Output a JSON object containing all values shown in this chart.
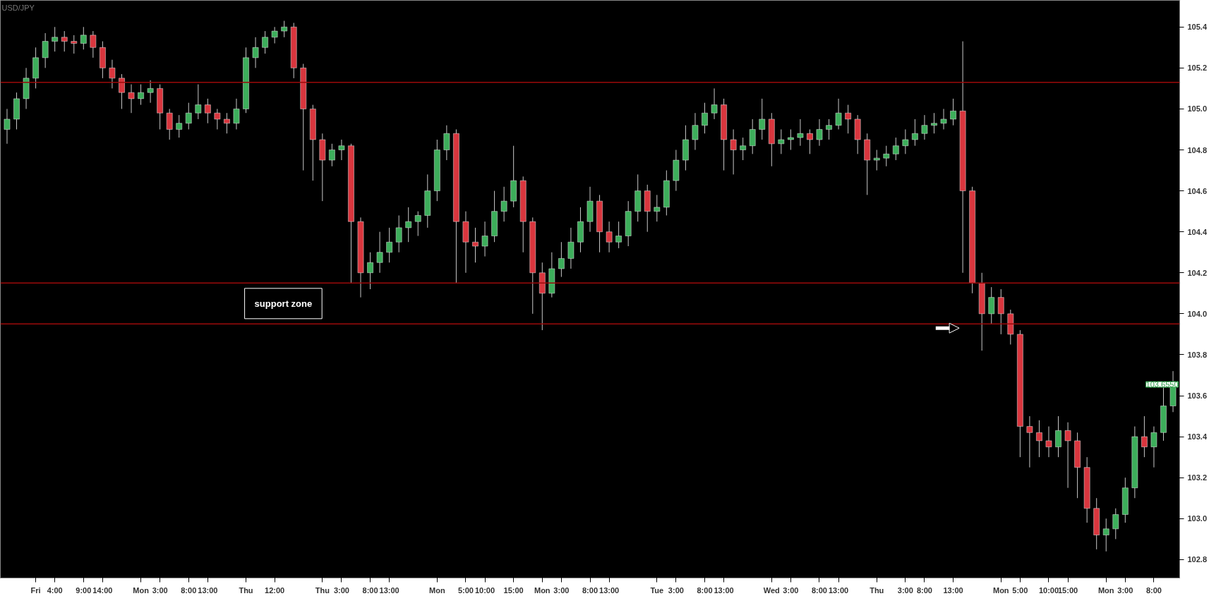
{
  "chart_data": {
    "type": "candlestick",
    "title": "USD/JPY",
    "categories": [
      null,
      null,
      null,
      "Fri",
      null,
      "4:00",
      null,
      null,
      "9:00",
      null,
      "14:00",
      null,
      null,
      null,
      "Mon",
      null,
      "3:00",
      null,
      null,
      "8:00",
      null,
      "13:00",
      null,
      null,
      null,
      "Thu",
      null,
      null,
      "12:00",
      null,
      null,
      null,
      null,
      "Thu",
      null,
      "3:00",
      null,
      null,
      "8:00",
      null,
      "13:00",
      null,
      null,
      null,
      null,
      "Mon",
      null,
      null,
      "5:00",
      null,
      "10:00",
      null,
      null,
      "15:00",
      null,
      null,
      "Mon",
      null,
      "3:00",
      null,
      null,
      "8:00",
      null,
      "13:00",
      null,
      null,
      null,
      null,
      "Tue",
      null,
      "3:00",
      null,
      null,
      "8:00",
      null,
      "13:00",
      null,
      null,
      null,
      null,
      "Wed",
      null,
      "3:00",
      null,
      null,
      "8:00",
      null,
      "13:00",
      null,
      null,
      null,
      "Thu",
      null,
      null,
      "3:00",
      null,
      "8:00",
      null,
      null,
      "13:00",
      null,
      null,
      null,
      null,
      "Mon",
      null,
      "5:00",
      null,
      null,
      "10:00",
      null,
      "15:00",
      null,
      null,
      null,
      "Mon",
      null,
      "3:00",
      null,
      null,
      "8:00",
      null,
      null
    ],
    "ohlc": [
      [
        104.9,
        105.0,
        104.83,
        104.95
      ],
      [
        104.95,
        105.08,
        104.9,
        105.05
      ],
      [
        105.05,
        105.2,
        105.0,
        105.15
      ],
      [
        105.15,
        105.3,
        105.1,
        105.25
      ],
      [
        105.25,
        105.37,
        105.2,
        105.33
      ],
      [
        105.33,
        105.4,
        105.28,
        105.35
      ],
      [
        105.35,
        105.38,
        105.28,
        105.33
      ],
      [
        105.33,
        105.36,
        105.27,
        105.32
      ],
      [
        105.32,
        105.4,
        105.29,
        105.36
      ],
      [
        105.36,
        105.38,
        105.25,
        105.3
      ],
      [
        105.3,
        105.33,
        105.15,
        105.2
      ],
      [
        105.2,
        105.24,
        105.1,
        105.15
      ],
      [
        105.15,
        105.17,
        105.0,
        105.08
      ],
      [
        105.08,
        105.12,
        104.98,
        105.05
      ],
      [
        105.05,
        105.12,
        105.02,
        105.08
      ],
      [
        105.08,
        105.14,
        105.03,
        105.1
      ],
      [
        105.1,
        105.12,
        104.9,
        104.98
      ],
      [
        104.98,
        105.0,
        104.85,
        104.9
      ],
      [
        104.9,
        104.97,
        104.86,
        104.93
      ],
      [
        104.93,
        105.03,
        104.9,
        104.98
      ],
      [
        104.98,
        105.12,
        104.95,
        105.02
      ],
      [
        105.02,
        105.05,
        104.93,
        104.98
      ],
      [
        104.98,
        105.0,
        104.9,
        104.95
      ],
      [
        104.95,
        104.98,
        104.88,
        104.93
      ],
      [
        104.93,
        105.05,
        104.9,
        105.0
      ],
      [
        105.0,
        105.3,
        104.98,
        105.25
      ],
      [
        105.25,
        105.35,
        105.2,
        105.3
      ],
      [
        105.3,
        105.38,
        105.27,
        105.35
      ],
      [
        105.35,
        105.4,
        105.32,
        105.38
      ],
      [
        105.38,
        105.43,
        105.35,
        105.4
      ],
      [
        105.4,
        105.42,
        105.15,
        105.2
      ],
      [
        105.2,
        105.22,
        104.7,
        105.0
      ],
      [
        105.0,
        105.02,
        104.65,
        104.85
      ],
      [
        104.85,
        104.88,
        104.55,
        104.75
      ],
      [
        104.75,
        104.83,
        104.72,
        104.8
      ],
      [
        104.8,
        104.85,
        104.75,
        104.82
      ],
      [
        104.82,
        104.83,
        104.15,
        104.45
      ],
      [
        104.45,
        104.47,
        104.08,
        104.2
      ],
      [
        104.2,
        104.3,
        104.12,
        104.25
      ],
      [
        104.25,
        104.4,
        104.2,
        104.3
      ],
      [
        104.3,
        104.42,
        104.25,
        104.35
      ],
      [
        104.35,
        104.48,
        104.3,
        104.42
      ],
      [
        104.42,
        104.52,
        104.35,
        104.45
      ],
      [
        104.45,
        104.5,
        104.38,
        104.48
      ],
      [
        104.48,
        104.68,
        104.42,
        104.6
      ],
      [
        104.6,
        104.85,
        104.55,
        104.8
      ],
      [
        104.8,
        104.92,
        104.75,
        104.88
      ],
      [
        104.88,
        104.9,
        104.15,
        104.45
      ],
      [
        104.45,
        104.5,
        104.2,
        104.35
      ],
      [
        104.35,
        104.42,
        104.25,
        104.33
      ],
      [
        104.33,
        104.45,
        104.28,
        104.38
      ],
      [
        104.38,
        104.6,
        104.35,
        104.5
      ],
      [
        104.5,
        104.62,
        104.45,
        104.55
      ],
      [
        104.55,
        104.82,
        104.52,
        104.65
      ],
      [
        104.65,
        104.67,
        104.3,
        104.45
      ],
      [
        104.45,
        104.47,
        104.0,
        104.2
      ],
      [
        104.2,
        104.25,
        103.92,
        104.1
      ],
      [
        104.1,
        104.3,
        104.08,
        104.22
      ],
      [
        104.22,
        104.35,
        104.18,
        104.27
      ],
      [
        104.27,
        104.42,
        104.22,
        104.35
      ],
      [
        104.35,
        104.52,
        104.3,
        104.45
      ],
      [
        104.45,
        104.62,
        104.4,
        104.55
      ],
      [
        104.55,
        104.58,
        104.3,
        104.4
      ],
      [
        104.4,
        104.45,
        104.3,
        104.35
      ],
      [
        104.35,
        104.45,
        104.32,
        104.38
      ],
      [
        104.38,
        104.55,
        104.33,
        104.5
      ],
      [
        104.5,
        104.68,
        104.45,
        104.6
      ],
      [
        104.6,
        104.63,
        104.4,
        104.5
      ],
      [
        104.5,
        104.58,
        104.45,
        104.52
      ],
      [
        104.52,
        104.7,
        104.48,
        104.65
      ],
      [
        104.65,
        104.8,
        104.6,
        104.75
      ],
      [
        104.75,
        104.92,
        104.7,
        104.85
      ],
      [
        104.85,
        104.98,
        104.8,
        104.92
      ],
      [
        104.92,
        105.03,
        104.88,
        104.98
      ],
      [
        104.98,
        105.1,
        104.95,
        105.02
      ],
      [
        105.02,
        105.05,
        104.7,
        104.85
      ],
      [
        104.85,
        104.9,
        104.68,
        104.8
      ],
      [
        104.8,
        104.86,
        104.75,
        104.82
      ],
      [
        104.82,
        104.95,
        104.78,
        104.9
      ],
      [
        104.9,
        105.05,
        104.85,
        104.95
      ],
      [
        104.95,
        104.98,
        104.72,
        104.83
      ],
      [
        104.83,
        104.9,
        104.78,
        104.85
      ],
      [
        104.85,
        104.9,
        104.8,
        104.86
      ],
      [
        104.86,
        104.95,
        104.82,
        104.88
      ],
      [
        104.88,
        104.9,
        104.78,
        104.85
      ],
      [
        104.85,
        104.95,
        104.82,
        104.9
      ],
      [
        104.9,
        104.95,
        104.85,
        104.92
      ],
      [
        104.92,
        105.05,
        104.9,
        104.98
      ],
      [
        104.98,
        105.02,
        104.88,
        104.95
      ],
      [
        104.95,
        104.97,
        104.78,
        104.85
      ],
      [
        104.85,
        104.88,
        104.58,
        104.75
      ],
      [
        104.75,
        104.8,
        104.7,
        104.76
      ],
      [
        104.76,
        104.82,
        104.72,
        104.78
      ],
      [
        104.78,
        104.86,
        104.75,
        104.82
      ],
      [
        104.82,
        104.9,
        104.78,
        104.85
      ],
      [
        104.85,
        104.95,
        104.82,
        104.88
      ],
      [
        104.88,
        104.97,
        104.85,
        104.92
      ],
      [
        104.92,
        104.98,
        104.88,
        104.93
      ],
      [
        104.93,
        105.0,
        104.9,
        104.95
      ],
      [
        104.95,
        105.05,
        104.92,
        104.99
      ],
      [
        104.99,
        105.33,
        104.2,
        104.6
      ],
      [
        104.6,
        104.62,
        104.1,
        104.15
      ],
      [
        104.15,
        104.2,
        103.82,
        104.0
      ],
      [
        104.0,
        104.13,
        103.95,
        104.08
      ],
      [
        104.08,
        104.12,
        103.9,
        104.0
      ],
      [
        104.0,
        104.02,
        103.85,
        103.9
      ],
      [
        103.9,
        103.92,
        103.3,
        103.45
      ],
      [
        103.45,
        103.5,
        103.25,
        103.42
      ],
      [
        103.42,
        103.48,
        103.3,
        103.38
      ],
      [
        103.38,
        103.45,
        103.3,
        103.35
      ],
      [
        103.35,
        103.5,
        103.3,
        103.43
      ],
      [
        103.43,
        103.47,
        103.15,
        103.38
      ],
      [
        103.38,
        103.42,
        103.1,
        103.25
      ],
      [
        103.25,
        103.3,
        102.98,
        103.05
      ],
      [
        103.05,
        103.1,
        102.85,
        102.92
      ],
      [
        102.92,
        103.0,
        102.84,
        102.95
      ],
      [
        102.95,
        103.05,
        102.9,
        103.02
      ],
      [
        103.02,
        103.2,
        102.98,
        103.15
      ],
      [
        103.15,
        103.45,
        103.1,
        103.4
      ],
      [
        103.4,
        103.5,
        103.3,
        103.35
      ],
      [
        103.35,
        103.45,
        103.25,
        103.42
      ],
      [
        103.42,
        103.65,
        103.38,
        103.55
      ],
      [
        103.55,
        103.72,
        103.52,
        103.655
      ]
    ],
    "colors": [
      "#3dae5b",
      "#3dae5b",
      "#3dae5b",
      "#3dae5b",
      "#3dae5b",
      "#3dae5b",
      "#d9363e",
      "#d9363e",
      "#3dae5b",
      "#d9363e",
      "#d9363e",
      "#d9363e",
      "#d9363e",
      "#d9363e",
      "#3dae5b",
      "#3dae5b",
      "#d9363e",
      "#d9363e",
      "#3dae5b",
      "#3dae5b",
      "#3dae5b",
      "#d9363e",
      "#d9363e",
      "#d9363e",
      "#3dae5b",
      "#3dae5b",
      "#3dae5b",
      "#3dae5b",
      "#3dae5b",
      "#3dae5b",
      "#d9363e",
      "#d9363e",
      "#d9363e",
      "#d9363e",
      "#3dae5b",
      "#3dae5b",
      "#d9363e",
      "#d9363e",
      "#3dae5b",
      "#3dae5b",
      "#3dae5b",
      "#3dae5b",
      "#3dae5b",
      "#3dae5b",
      "#3dae5b",
      "#3dae5b",
      "#3dae5b",
      "#d9363e",
      "#d9363e",
      "#d9363e",
      "#3dae5b",
      "#3dae5b",
      "#3dae5b",
      "#3dae5b",
      "#d9363e",
      "#d9363e",
      "#d9363e",
      "#3dae5b",
      "#3dae5b",
      "#3dae5b",
      "#3dae5b",
      "#3dae5b",
      "#d9363e",
      "#d9363e",
      "#3dae5b",
      "#3dae5b",
      "#3dae5b",
      "#d9363e",
      "#3dae5b",
      "#3dae5b",
      "#3dae5b",
      "#3dae5b",
      "#3dae5b",
      "#3dae5b",
      "#3dae5b",
      "#d9363e",
      "#d9363e",
      "#3dae5b",
      "#3dae5b",
      "#3dae5b",
      "#d9363e",
      "#3dae5b",
      "#3dae5b",
      "#3dae5b",
      "#d9363e",
      "#3dae5b",
      "#3dae5b",
      "#3dae5b",
      "#d9363e",
      "#d9363e",
      "#d9363e",
      "#3dae5b",
      "#3dae5b",
      "#3dae5b",
      "#3dae5b",
      "#3dae5b",
      "#3dae5b",
      "#3dae5b",
      "#3dae5b",
      "#3dae5b",
      "#d9363e",
      "#d9363e",
      "#d9363e",
      "#3dae5b",
      "#d9363e",
      "#d9363e",
      "#d9363e",
      "#d9363e",
      "#d9363e",
      "#d9363e",
      "#3dae5b",
      "#d9363e",
      "#d9363e",
      "#d9363e",
      "#d9363e",
      "#3dae5b",
      "#3dae5b",
      "#3dae5b",
      "#3dae5b",
      "#d9363e",
      "#3dae5b",
      "#3dae5b",
      "#3dae5b"
    ],
    "ylim": [
      102.71,
      105.53
    ],
    "yticks": [
      102.8,
      {
        "value": 103,
        "label": "103.0"
      },
      103.2,
      103.4,
      103.6,
      103.8,
      {
        "value": 104,
        "label": "104.0"
      },
      104.2,
      104.4,
      104.6,
      104.8,
      {
        "value": 105,
        "label": "105.0"
      },
      105.2,
      105.4
    ],
    "ref_lines": [
      {
        "axis": "y",
        "value": 105.13,
        "color": "#9b0a0a"
      },
      {
        "axis": "y",
        "value": 104.15,
        "color": "#9b0a0a"
      },
      {
        "axis": "y",
        "value": 103.95,
        "color": "#9b0a0a"
      }
    ],
    "annotations": [
      "support zone",
      {
        "text": "103.6550",
        "y": 103.655
      }
    ]
  }
}
